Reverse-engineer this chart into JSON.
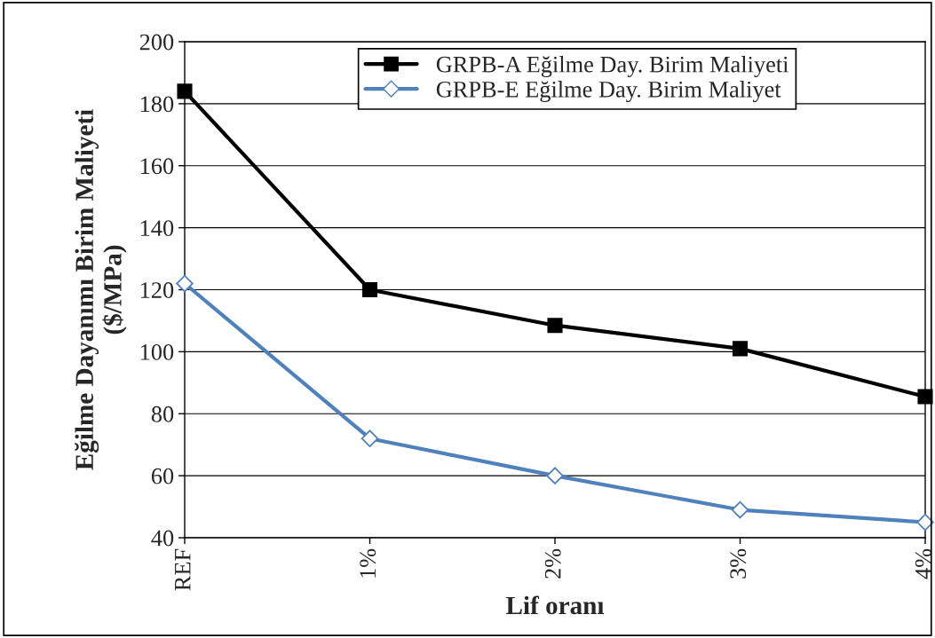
{
  "chart_data": {
    "type": "line",
    "xlabel": "Lif oranı",
    "ylabel": "Eğilme Dayanımı Birim Maliyeti\n($/MPa)",
    "categories": [
      "REF",
      "1%",
      "2%",
      "3%",
      "4%"
    ],
    "series": [
      {
        "name": "GRPB-A Eğilme Day. Birim Maliyeti",
        "color": "#000000",
        "marker": "square",
        "values": [
          184,
          120,
          108.5,
          101,
          85.5
        ]
      },
      {
        "name": "GRPB-E Eğilme Day. Birim Maliyet",
        "color": "#4f81bd",
        "marker": "diamond",
        "values": [
          122,
          72,
          60,
          49,
          45
        ]
      }
    ],
    "ylim": [
      40,
      200
    ],
    "yticks": [
      40,
      60,
      80,
      100,
      120,
      140,
      160,
      180,
      200
    ],
    "grid": "y",
    "legend": "top",
    "line_style": "solid"
  }
}
